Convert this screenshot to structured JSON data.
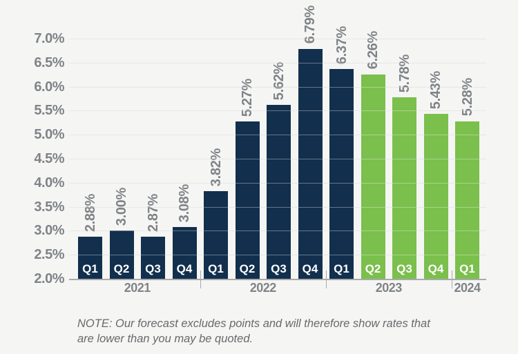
{
  "background": "#f5f5f3",
  "chart_data": {
    "type": "bar",
    "title": "",
    "xlabel": "",
    "ylabel": "",
    "ylim": [
      2.0,
      7.0
    ],
    "ytick_step": 0.5,
    "grid": "horizontal",
    "ytick_labels": [
      "2.0%",
      "2.5%",
      "3.0%",
      "3.5%",
      "4.0%",
      "4.5%",
      "5.0%",
      "5.5%",
      "6.0%",
      "6.5%",
      "7.0%"
    ],
    "bar_colors": {
      "navy": "#122f4d",
      "green": "#7bbf4c"
    },
    "label_color": "#7f8387",
    "bars": [
      {
        "quarter": "Q1",
        "year": "2021",
        "value": 2.88,
        "label": "2.88%",
        "color_key": "navy"
      },
      {
        "quarter": "Q2",
        "year": "2021",
        "value": 3.0,
        "label": "3.00%",
        "color_key": "navy"
      },
      {
        "quarter": "Q3",
        "year": "2021",
        "value": 2.87,
        "label": "2.87%",
        "color_key": "navy"
      },
      {
        "quarter": "Q4",
        "year": "2021",
        "value": 3.08,
        "label": "3.08%",
        "color_key": "navy"
      },
      {
        "quarter": "Q1",
        "year": "2022",
        "value": 3.82,
        "label": "3.82%",
        "color_key": "navy"
      },
      {
        "quarter": "Q2",
        "year": "2022",
        "value": 5.27,
        "label": "5.27%",
        "color_key": "navy"
      },
      {
        "quarter": "Q3",
        "year": "2022",
        "value": 5.62,
        "label": "5.62%",
        "color_key": "navy"
      },
      {
        "quarter": "Q4",
        "year": "2022",
        "value": 6.79,
        "label": "6.79%",
        "color_key": "navy"
      },
      {
        "quarter": "Q1",
        "year": "2023",
        "value": 6.37,
        "label": "6.37%",
        "color_key": "navy"
      },
      {
        "quarter": "Q2",
        "year": "2023",
        "value": 6.26,
        "label": "6.26%",
        "color_key": "green"
      },
      {
        "quarter": "Q3",
        "year": "2023",
        "value": 5.78,
        "label": "5.78%",
        "color_key": "green"
      },
      {
        "quarter": "Q4",
        "year": "2023",
        "value": 5.43,
        "label": "5.43%",
        "color_key": "green"
      },
      {
        "quarter": "Q1",
        "year": "2024",
        "value": 5.28,
        "label": "5.28%",
        "color_key": "green"
      }
    ],
    "year_groups": [
      {
        "label": "2021",
        "count": 4
      },
      {
        "label": "2022",
        "count": 4
      },
      {
        "label": "2023",
        "count": 4
      },
      {
        "label": "2024",
        "count": 1
      }
    ]
  },
  "note": {
    "lines": [
      "NOTE: Our forecast excludes points and will therefore show rates that",
      "are lower than you may be quoted."
    ]
  }
}
